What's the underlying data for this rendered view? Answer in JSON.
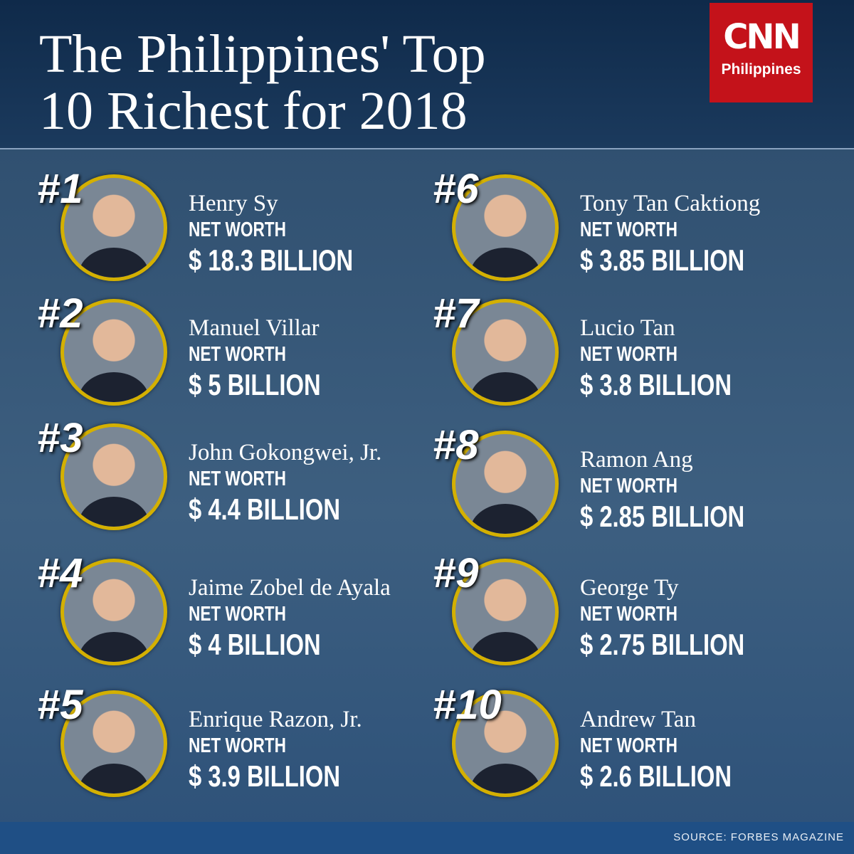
{
  "header": {
    "title": [
      "The Philippines' Top",
      "10 Richest for 2018"
    ],
    "logo": {
      "brand": "CNN",
      "subtitle": "Philippines"
    }
  },
  "entries": [
    {
      "rank": "#1",
      "name": "Henry Sy",
      "label": "NET WORTH",
      "net_worth": "$ 18.3 BILLION"
    },
    {
      "rank": "#2",
      "name": "Manuel Villar",
      "label": "NET WORTH",
      "net_worth": "$ 5 BILLION"
    },
    {
      "rank": "#3",
      "name": "John Gokongwei, Jr.",
      "label": "NET WORTH",
      "net_worth": "$ 4.4 BILLION"
    },
    {
      "rank": "#4",
      "name": "Jaime Zobel de Ayala",
      "label": "NET WORTH",
      "net_worth": "$ 4 BILLION"
    },
    {
      "rank": "#5",
      "name": "Enrique Razon, Jr.",
      "label": "NET WORTH",
      "net_worth": "$ 3.9 BILLION"
    },
    {
      "rank": "#6",
      "name": "Tony Tan Caktiong",
      "label": "NET WORTH",
      "net_worth": "$ 3.85 BILLION"
    },
    {
      "rank": "#7",
      "name": "Lucio Tan",
      "label": "NET WORTH",
      "net_worth": "$ 3.8 BILLION"
    },
    {
      "rank": "#8",
      "name": "Ramon Ang",
      "label": "NET WORTH",
      "net_worth": "$ 2.85 BILLION"
    },
    {
      "rank": "#9",
      "name": "George Ty",
      "label": "NET WORTH",
      "net_worth": "$ 2.75 BILLION"
    },
    {
      "rank": "#10",
      "name": "Andrew Tan",
      "label": "NET WORTH",
      "net_worth": "$ 2.6 BILLION"
    }
  ],
  "footer": {
    "source": "SOURCE: FORBES MAGAZINE"
  }
}
